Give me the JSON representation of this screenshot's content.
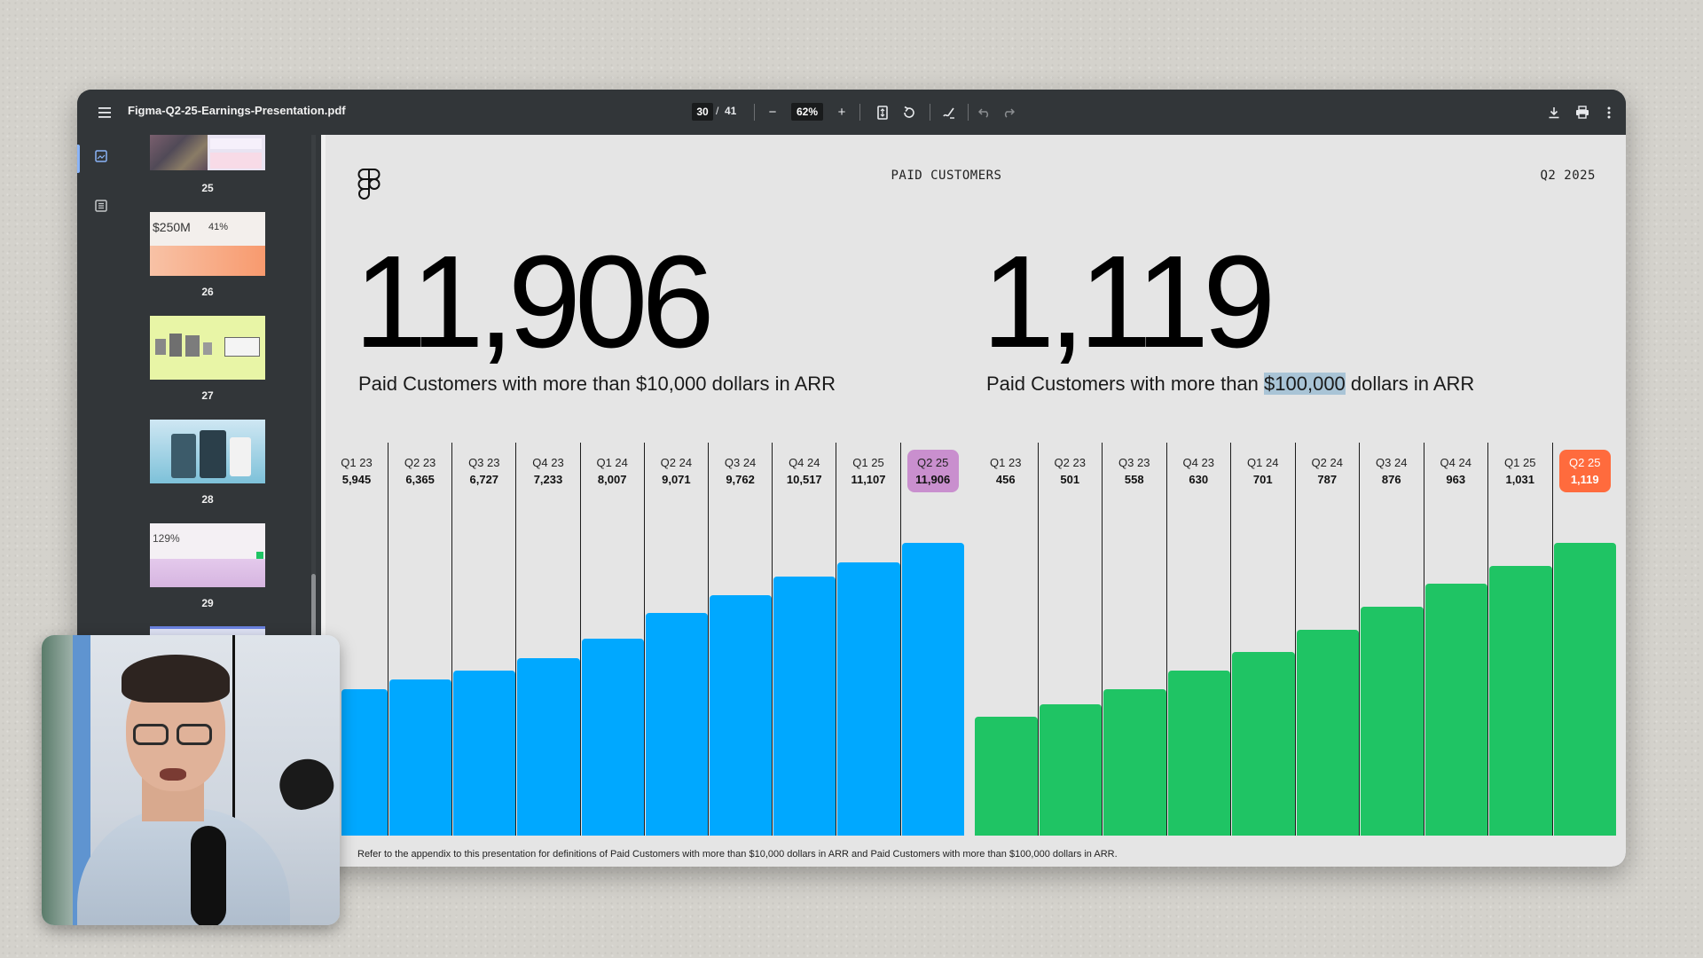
{
  "toolbar": {
    "file_name": "Figma-Q2-25-Earnings-Presentation.pdf",
    "current_page": "30",
    "separator": "/",
    "total_pages": "41",
    "zoom": "62%",
    "zoom_out_glyph": "−",
    "zoom_in_glyph": "+"
  },
  "sidebar": {
    "thumbnails": [
      {
        "label": "25"
      },
      {
        "label": "26",
        "texts": [
          "$250M",
          "41%"
        ]
      },
      {
        "label": "27"
      },
      {
        "label": "28"
      },
      {
        "label": "29",
        "texts": [
          "129%"
        ]
      }
    ]
  },
  "slide": {
    "title": "PAID CUSTOMERS",
    "period": "Q2 2025",
    "left_metric": {
      "value": "11,906",
      "caption": "Paid Customers with more than $10,000 dollars in ARR"
    },
    "right_metric": {
      "value": "1,119",
      "caption_before": "Paid Customers with more than ",
      "caption_highlight": "$100,000",
      "caption_after": " dollars in ARR"
    },
    "footnote": "Refer to the  appendix to this presentation for definitions of Paid Customers with more than $10,000 dollars in ARR and Paid Customers with more than $100,000 dollars in ARR."
  },
  "chart_data": [
    {
      "type": "bar",
      "categories": [
        "Q1 23",
        "Q2 23",
        "Q3 23",
        "Q4 23",
        "Q1 24",
        "Q2 24",
        "Q3 24",
        "Q4 24",
        "Q1 25",
        "Q2 25"
      ],
      "value_labels": [
        "5,945",
        "6,365",
        "6,727",
        "7,233",
        "8,007",
        "9,071",
        "9,762",
        "10,517",
        "11,107",
        "11,906"
      ],
      "values": [
        5945,
        6365,
        6727,
        7233,
        8007,
        9071,
        9762,
        10517,
        11107,
        11906
      ],
      "color": "#00a8ff",
      "highlight_color": "#c98fce",
      "title": "",
      "xlabel": "",
      "ylabel": ""
    },
    {
      "type": "bar",
      "categories": [
        "Q1 23",
        "Q2 23",
        "Q3 23",
        "Q4 23",
        "Q1 24",
        "Q2 24",
        "Q3 24",
        "Q4 24",
        "Q1 25",
        "Q2 25"
      ],
      "value_labels": [
        "456",
        "501",
        "558",
        "630",
        "701",
        "787",
        "876",
        "963",
        "1,031",
        "1,119"
      ],
      "values": [
        456,
        501,
        558,
        630,
        701,
        787,
        876,
        963,
        1031,
        1119
      ],
      "color": "#1fc464",
      "highlight_color": "#ff6b3d",
      "title": "",
      "xlabel": "",
      "ylabel": ""
    }
  ]
}
